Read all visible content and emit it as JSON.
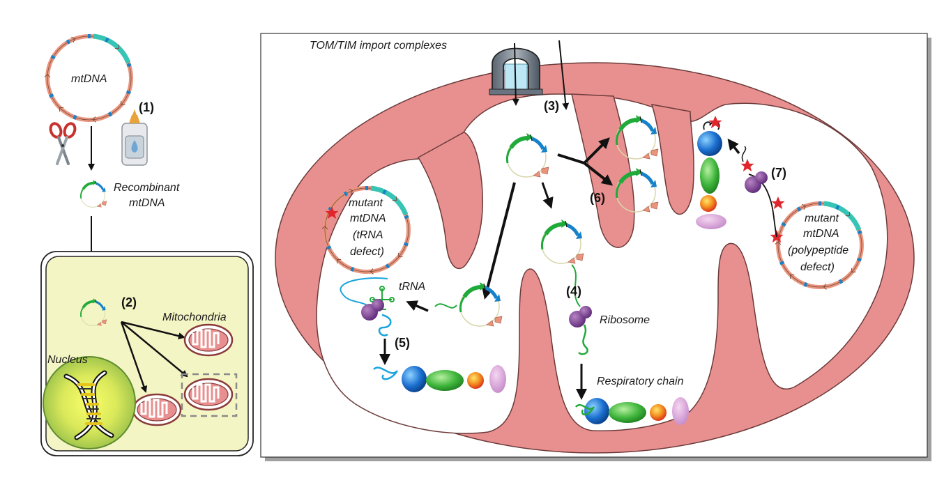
{
  "left_panel": {
    "mtdna_label": "mtDNA",
    "step1": "(1)",
    "recombinant_line1": "Recombinant",
    "recombinant_line2": "mtDNA",
    "step2": "(2)",
    "mitochondria_label": "Mitochondria",
    "nucleus_label": "Nucleus"
  },
  "main_panel": {
    "import_label": "TOM/TIM import complexes",
    "step3": "(3)",
    "step4": "(4)",
    "step5": "(5)",
    "step6": "(6)",
    "step7": "(7)",
    "trna_label": "tRNA",
    "ribosome_label": "Ribosome",
    "respiratory_label": "Respiratory chain",
    "mutant_trna_lines": [
      "mutant",
      "mtDNA",
      "(tRNA",
      "defect)"
    ],
    "mutant_poly_lines": [
      "mutant",
      "mtDNA",
      "(polypeptide",
      "defect)"
    ]
  },
  "colors": {
    "membrane": "#E8908F",
    "gene_green": "#1FAA3A",
    "gene_blue": "#1782C9",
    "gene_salmon": "#E9957E",
    "gene_teal": "#38C4B5",
    "cell_fill": "#F4F5C4"
  }
}
